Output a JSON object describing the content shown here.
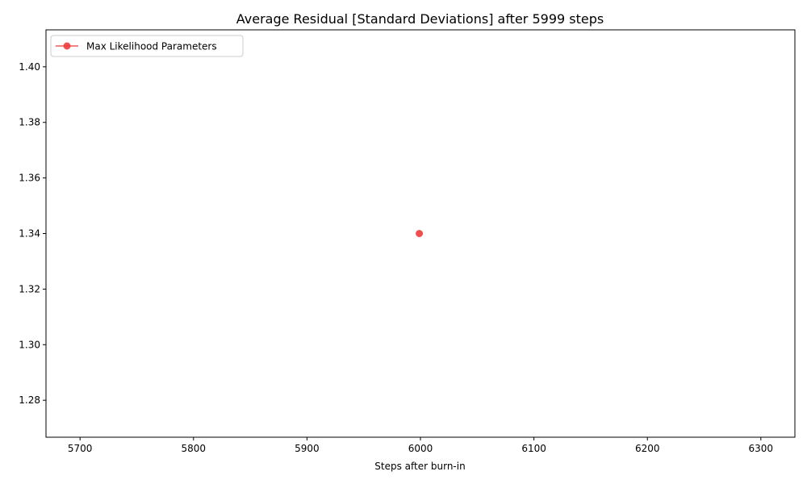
{
  "chart_data": {
    "type": "line",
    "title": "Average Residual [Standard Deviations] after 5999 steps",
    "xlabel": "Steps after burn-in",
    "ylabel": "",
    "xlim": [
      5670,
      6330
    ],
    "ylim": [
      1.2667,
      1.4133
    ],
    "xticks": [
      5700,
      5800,
      5900,
      6000,
      6100,
      6200,
      6300
    ],
    "yticks": [
      1.28,
      1.3,
      1.32,
      1.34,
      1.36,
      1.38,
      1.4
    ],
    "grid": false,
    "legend_position": "top-left",
    "series": [
      {
        "name": "Max Likelihood Parameters",
        "color": "#f03c3c",
        "marker": "circle",
        "x": [
          5999
        ],
        "y": [
          1.34
        ]
      }
    ]
  }
}
